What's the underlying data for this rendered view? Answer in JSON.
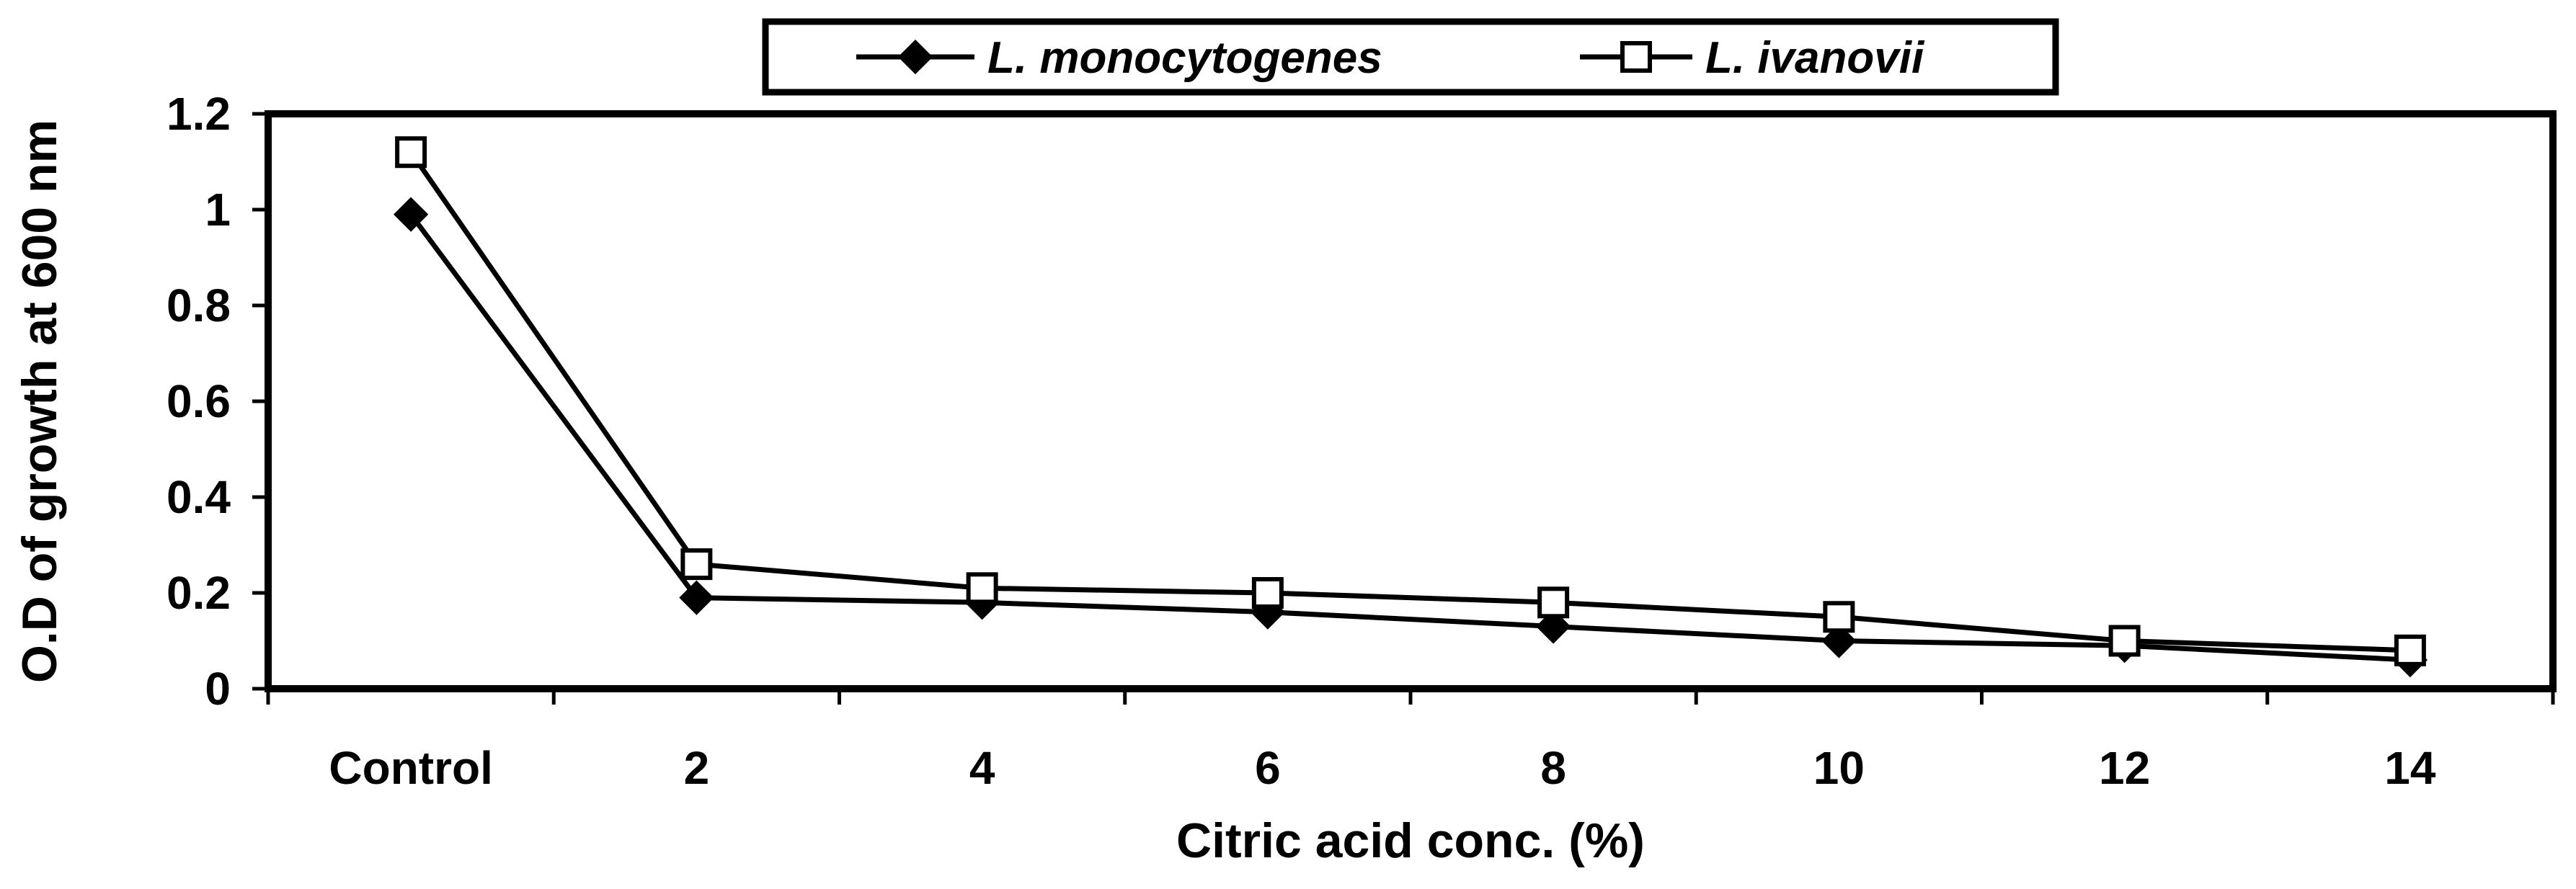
{
  "chart_data": {
    "type": "line",
    "categories": [
      "Control",
      "2",
      "4",
      "6",
      "8",
      "10",
      "12",
      "14"
    ],
    "xlabel": "Citric acid conc. (%)",
    "ylabel": "O.D of growth at 600 nm",
    "ylim": [
      0,
      1.2
    ],
    "yticks": [
      "0",
      "0.2",
      "0.4",
      "0.6",
      "0.8",
      "1",
      "1.2"
    ],
    "grid": false,
    "legend_position": "top-center",
    "series": [
      {
        "name": "L. monocytogenes",
        "marker": "filled-diamond",
        "color": "#000000",
        "values": [
          0.99,
          0.19,
          0.18,
          0.16,
          0.13,
          0.1,
          0.09,
          0.06
        ]
      },
      {
        "name": "L. ivanovii",
        "marker": "open-square",
        "color": "#000000",
        "values": [
          1.12,
          0.26,
          0.21,
          0.2,
          0.18,
          0.15,
          0.1,
          0.08
        ]
      }
    ]
  }
}
